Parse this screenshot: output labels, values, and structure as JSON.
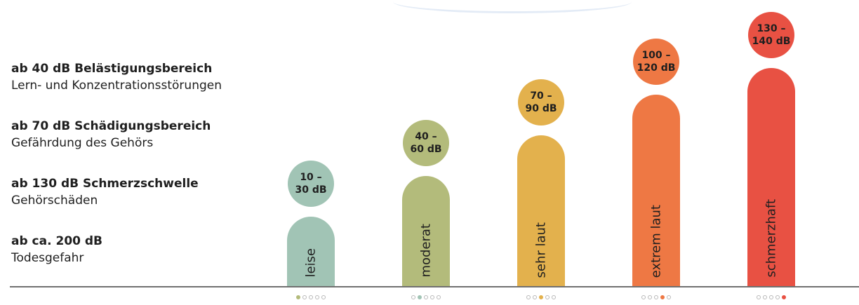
{
  "legend": [
    {
      "title": "ab 40 dB Belästigungsbereich",
      "desc": "Lern- und Konzentrationsstörungen"
    },
    {
      "title": "ab 70 dB Schädigungsbereich",
      "desc": "Gefährdung des Gehörs"
    },
    {
      "title": "ab 130 dB Schmerzschwelle",
      "desc": "Gehörschäden"
    },
    {
      "title": "ab ca. 200 dB",
      "desc": "Todesgefahr"
    }
  ],
  "chart_data": {
    "type": "bar",
    "categories": [
      "leise",
      "moderat",
      "sehr laut",
      "extrem laut",
      "schmerzhaft"
    ],
    "ranges": [
      "10 –\n30 dB",
      "40 –\n60 dB",
      "70 –\n90 dB",
      "100 –\n120 dB",
      "130 –\n140 dB"
    ],
    "range_values": [
      [
        10,
        30
      ],
      [
        40,
        60
      ],
      [
        70,
        90
      ],
      [
        100,
        120
      ],
      [
        130,
        140
      ]
    ],
    "colors": [
      "#a1c4b5",
      "#b3bb7b",
      "#e3b14d",
      "#ee7844",
      "#e85143"
    ],
    "legend": "left",
    "grid": false,
    "pagination": {
      "total": 5,
      "active_color": [
        "#b3bb7b",
        "#a1c4b5",
        "#e3b14d",
        "#ee7844",
        "#e85143"
      ]
    }
  }
}
